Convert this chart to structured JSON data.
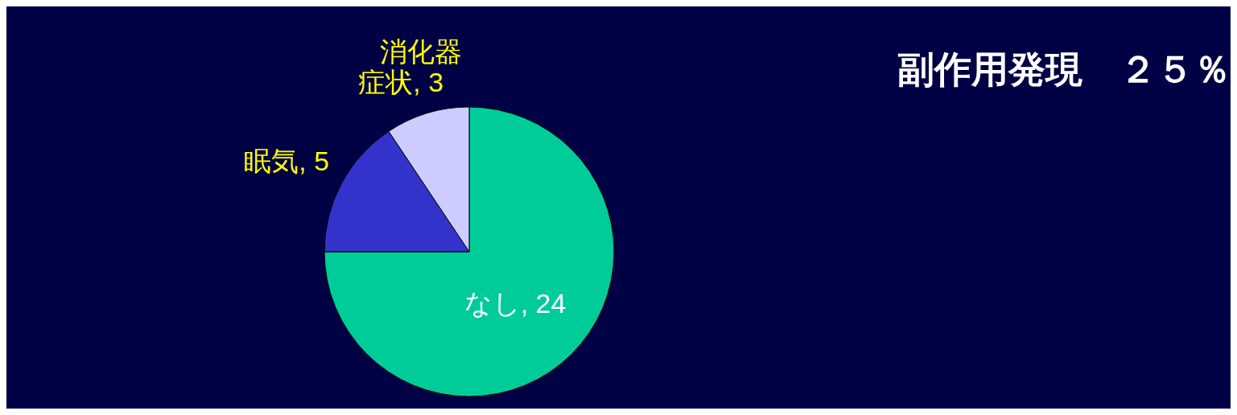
{
  "chart_data": {
    "type": "pie",
    "title": "副作用発現　２５％",
    "categories": [
      "なし",
      "眠気",
      "消化器症状"
    ],
    "values": [
      24,
      5,
      3
    ],
    "colors": [
      "#00cc99",
      "#3333cc",
      "#ccccff"
    ],
    "value_labels": [
      ", 24",
      ", 5",
      ", 3"
    ],
    "legend": false
  }
}
